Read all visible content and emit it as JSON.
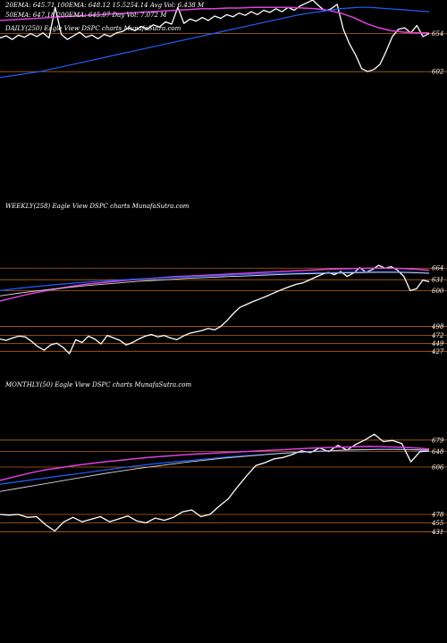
{
  "colors": {
    "background": "#000000",
    "price": "#ffffff",
    "level_line": "#b8621b",
    "ema_blue": "#1f5fff",
    "ema_magenta": "#e040e0",
    "ema_white": "#d8d8d8",
    "ema_gray": "#9a9a9a"
  },
  "header": {
    "line1": "20EMA: 645.71   100EMA: 648.12   15.5254.14   Avg Vol: 6.438  M",
    "line2": "50EMA: 647.18   200EMA: 645.07   Day Vol: 7.072  M",
    "daily_caption": "DAILY(250) Eagle  View  DSPC charts MunafaSutra.com"
  },
  "chart_data": [
    {
      "type": "line",
      "caption": "DAILY(250) Eagle  View  DSPC charts MunafaSutra.com",
      "levels": [
        654,
        602
      ],
      "ticks": [
        {
          "label": "654",
          "value": 654
        },
        {
          "label": "602",
          "value": 602
        }
      ],
      "ylim": [
        590,
        700
      ],
      "series": [
        {
          "values": [
            648,
            651,
            646,
            652,
            649,
            654,
            650,
            655,
            648,
            690,
            653,
            646,
            651,
            656,
            649,
            652,
            647,
            653,
            650,
            655,
            657,
            662,
            658,
            664,
            660,
            666,
            663,
            670,
            667,
            690,
            668,
            674,
            671,
            676,
            672,
            678,
            675,
            680,
            677,
            682,
            679,
            684,
            680,
            686,
            683,
            688,
            684,
            690,
            686,
            692,
            696,
            700,
            692,
            685,
            688,
            694,
            660,
            640,
            625,
            606,
            602,
            605,
            612,
            630,
            650,
            660,
            662,
            655,
            665,
            650,
            654
          ]
        },
        {
          "values": [
            672,
            673,
            674,
            675,
            676,
            677,
            678,
            679,
            680,
            681,
            682,
            683,
            684,
            685,
            686,
            687,
            688,
            688,
            689,
            689,
            690,
            690,
            690,
            690,
            689,
            688,
            686,
            682,
            676,
            668,
            662,
            658,
            656,
            655,
            655
          ]
        },
        {
          "values": [
            594,
            596,
            598,
            600,
            602,
            605,
            608,
            611,
            614,
            617,
            620,
            623,
            626,
            629,
            632,
            635,
            638,
            641,
            644,
            647,
            650,
            653,
            656,
            659,
            662,
            665,
            668,
            671,
            674,
            677,
            680,
            682,
            684,
            686,
            688,
            689,
            690,
            690,
            689,
            688,
            687,
            686,
            685,
            684
          ]
        }
      ]
    },
    {
      "type": "line",
      "caption": "WEEKLY(258) Eagle  View  DSPC charts MunafaSutra.com",
      "levels": [
        664,
        631,
        600,
        498,
        472,
        449,
        427
      ],
      "ticks": [
        {
          "label": "664",
          "value": 664
        },
        {
          "label": "631",
          "value": 631
        },
        {
          "label": "600",
          "value": 600
        },
        {
          "label": "498",
          "value": 498
        },
        {
          "label": "472",
          "value": 472
        },
        {
          "label": "449",
          "value": 449
        },
        {
          "label": "427",
          "value": 427
        }
      ],
      "ylim": [
        410,
        690
      ],
      "series": [
        {
          "values": [
            462,
            458,
            465,
            470,
            468,
            455,
            440,
            430,
            445,
            450,
            438,
            420,
            460,
            452,
            470,
            462,
            448,
            472,
            465,
            458,
            445,
            452,
            462,
            470,
            475,
            468,
            472,
            465,
            460,
            470,
            478,
            482,
            486,
            492,
            488,
            498,
            515,
            535,
            552,
            560,
            568,
            575,
            582,
            590,
            598,
            605,
            612,
            618,
            622,
            630,
            638,
            646,
            652,
            645,
            655,
            640,
            650,
            665,
            652,
            660,
            672,
            664,
            668,
            658,
            640,
            600,
            605,
            630,
            625
          ]
        },
        {
          "values": [
            570,
            580,
            590,
            598,
            605,
            612,
            618,
            622,
            626,
            630,
            633,
            636,
            639,
            641,
            643,
            645,
            647,
            649,
            651,
            653,
            655,
            657,
            659,
            661,
            662,
            663,
            664,
            664,
            663,
            661,
            658
          ]
        },
        {
          "values": [
            600,
            606,
            611,
            616,
            620,
            624,
            627,
            630,
            633,
            635,
            637,
            639,
            641,
            643,
            645,
            647,
            648,
            649,
            650,
            651,
            652,
            653,
            653,
            653,
            652,
            650
          ]
        },
        {
          "values": [
            585,
            592,
            598,
            604,
            609,
            614,
            618,
            622,
            626,
            629,
            632,
            635,
            637,
            639,
            641,
            643,
            645,
            647,
            648,
            649,
            650,
            651,
            652,
            652,
            651,
            649
          ]
        }
      ]
    },
    {
      "type": "line",
      "caption": "MONTHLY(50) Eagle  View  DSPC charts MunafaSutra.com",
      "levels": [
        679,
        648,
        606,
        478,
        455,
        431
      ],
      "ticks": [
        {
          "label": "679",
          "value": 679
        },
        {
          "label": "648",
          "value": 648
        },
        {
          "label": "606",
          "value": 606
        },
        {
          "label": "478",
          "value": 478
        },
        {
          "label": "455",
          "value": 455
        },
        {
          "label": "431",
          "value": 431
        }
      ],
      "ylim": [
        420,
        710
      ],
      "series": [
        {
          "values": [
            478,
            476,
            478,
            470,
            472,
            450,
            433,
            458,
            470,
            458,
            465,
            472,
            458,
            466,
            474,
            460,
            455,
            468,
            462,
            470,
            485,
            490,
            472,
            478,
            500,
            520,
            552,
            582,
            610,
            618,
            628,
            632,
            640,
            650,
            645,
            658,
            648,
            665,
            652,
            668,
            680,
            695,
            675,
            678,
            670,
            620,
            648,
            650
          ]
        },
        {
          "values": [
            570,
            580,
            590,
            598,
            604,
            610,
            615,
            620,
            624,
            628,
            632,
            635,
            638,
            641,
            643,
            645,
            647,
            649,
            651,
            653,
            655,
            657,
            659,
            660,
            661,
            662,
            661,
            660,
            658,
            655
          ]
        },
        {
          "values": [
            560,
            566,
            572,
            578,
            584,
            590,
            596,
            602,
            608,
            613,
            618,
            622,
            626,
            630,
            634,
            637,
            640,
            643,
            646,
            648,
            650,
            652,
            653,
            654,
            654,
            653,
            651
          ]
        },
        {
          "values": [
            540,
            548,
            556,
            564,
            572,
            580,
            588,
            595,
            602,
            608,
            614,
            620,
            625,
            630,
            634,
            638,
            642,
            645,
            648,
            650,
            652,
            653,
            654,
            654,
            653,
            652
          ]
        }
      ]
    }
  ],
  "panel_labels": {
    "weekly": "WEEKLY(258) Eagle  View  DSPC charts MunafaSutra.com",
    "monthly": "MONTHLY(50) Eagle  View  DSPC charts MunafaSutra.com"
  }
}
